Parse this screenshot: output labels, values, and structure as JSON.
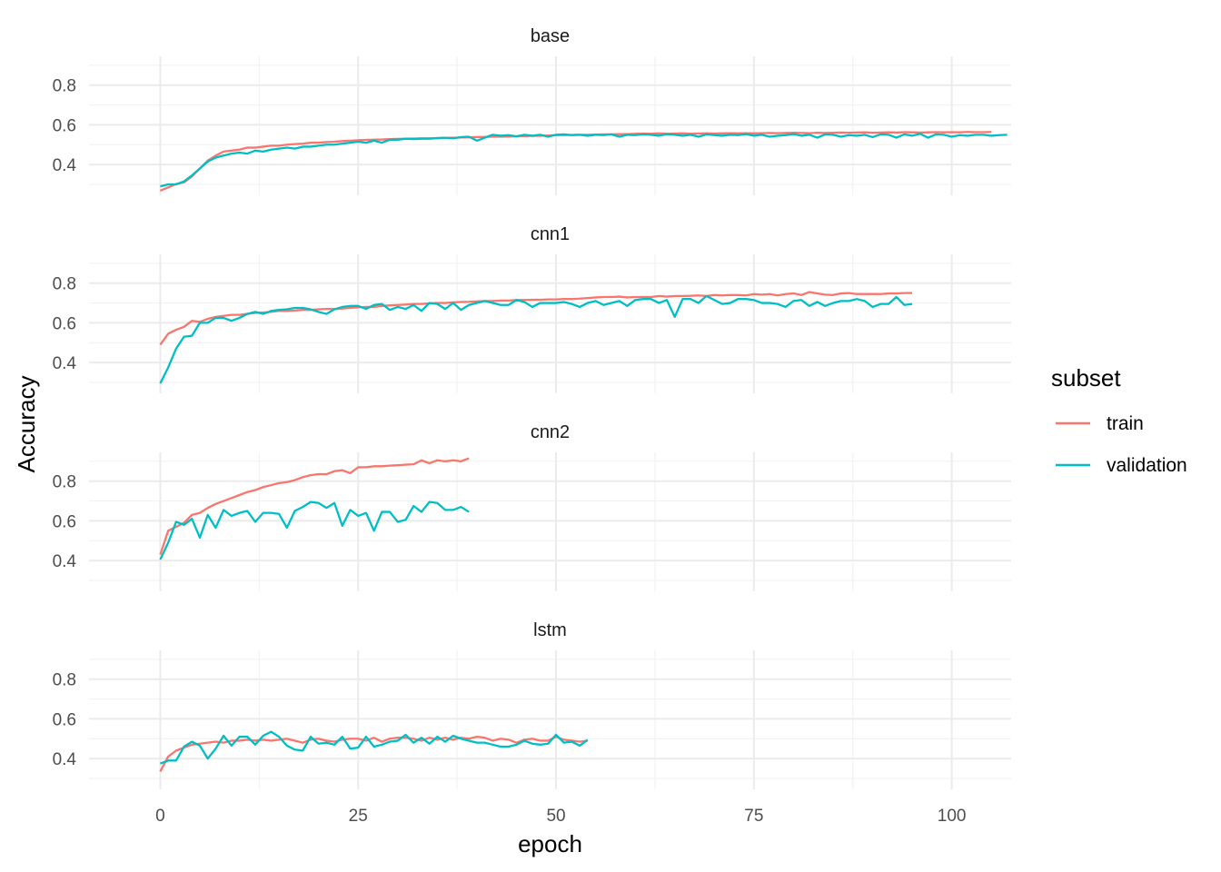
{
  "chart_data": {
    "type": "line",
    "xlabel": "epoch",
    "ylabel": "Accuracy",
    "xlim": [
      -9,
      107.5
    ],
    "ylim": [
      0.245,
      0.945
    ],
    "x_ticks": [
      0,
      25,
      50,
      75,
      100
    ],
    "y_ticks": [
      0.4,
      0.6,
      0.8
    ],
    "grid": true,
    "legend": {
      "title": "subset",
      "position": "right",
      "entries": [
        {
          "name": "train",
          "color": "#F8766D"
        },
        {
          "name": "validation",
          "color": "#00BFC4"
        }
      ]
    },
    "panels": [
      {
        "name": "base",
        "series": [
          {
            "name": "train",
            "color": "#F8766D",
            "values": [
              0.268,
              0.285,
              0.302,
              0.31,
              0.34,
              0.38,
              0.42,
              0.445,
              0.465,
              0.47,
              0.475,
              0.485,
              0.485,
              0.49,
              0.495,
              0.495,
              0.5,
              0.503,
              0.505,
              0.51,
              0.51,
              0.513,
              0.515,
              0.518,
              0.52,
              0.522,
              0.524,
              0.525,
              0.526,
              0.528,
              0.529,
              0.53,
              0.531,
              0.532,
              0.532,
              0.533,
              0.534,
              0.535,
              0.536,
              0.537,
              0.538,
              0.539,
              0.54,
              0.54,
              0.541,
              0.542,
              0.543,
              0.544,
              0.545,
              0.546,
              0.548,
              0.548,
              0.549,
              0.55,
              0.55,
              0.551,
              0.552,
              0.552,
              0.553,
              0.553,
              0.555,
              0.556,
              0.555,
              0.557,
              0.555,
              0.556,
              0.557,
              0.555,
              0.556,
              0.557,
              0.556,
              0.557,
              0.558,
              0.557,
              0.558,
              0.557,
              0.558,
              0.559,
              0.558,
              0.559,
              0.56,
              0.559,
              0.558,
              0.56,
              0.559,
              0.56,
              0.561,
              0.56,
              0.561,
              0.562,
              0.56,
              0.561,
              0.562,
              0.561,
              0.563,
              0.562,
              0.561,
              0.562,
              0.563,
              0.562,
              0.563,
              0.562,
              0.564,
              0.563,
              0.563,
              0.564
            ]
          },
          {
            "name": "validation",
            "color": "#00BFC4",
            "values": [
              0.29,
              0.3,
              0.3,
              0.315,
              0.345,
              0.38,
              0.415,
              0.435,
              0.445,
              0.455,
              0.46,
              0.455,
              0.47,
              0.465,
              0.475,
              0.48,
              0.485,
              0.48,
              0.49,
              0.49,
              0.495,
              0.5,
              0.5,
              0.505,
              0.51,
              0.515,
              0.51,
              0.52,
              0.51,
              0.525,
              0.525,
              0.53,
              0.528,
              0.53,
              0.53,
              0.533,
              0.535,
              0.532,
              0.538,
              0.54,
              0.52,
              0.535,
              0.55,
              0.545,
              0.548,
              0.542,
              0.55,
              0.545,
              0.55,
              0.54,
              0.55,
              0.552,
              0.548,
              0.55,
              0.545,
              0.55,
              0.548,
              0.552,
              0.54,
              0.55,
              0.548,
              0.552,
              0.55,
              0.545,
              0.553,
              0.55,
              0.545,
              0.55,
              0.54,
              0.552,
              0.548,
              0.545,
              0.55,
              0.548,
              0.553,
              0.545,
              0.55,
              0.54,
              0.545,
              0.548,
              0.553,
              0.545,
              0.55,
              0.535,
              0.552,
              0.55,
              0.54,
              0.548,
              0.545,
              0.55,
              0.538,
              0.552,
              0.55,
              0.535,
              0.552,
              0.545,
              0.555,
              0.535,
              0.552,
              0.55,
              0.54,
              0.548,
              0.545,
              0.55,
              0.55,
              0.545,
              0.548,
              0.55
            ]
          }
        ]
      },
      {
        "name": "cnn1",
        "series": [
          {
            "name": "train",
            "color": "#F8766D",
            "values": [
              0.49,
              0.545,
              0.565,
              0.58,
              0.61,
              0.605,
              0.62,
              0.63,
              0.635,
              0.64,
              0.64,
              0.645,
              0.65,
              0.652,
              0.655,
              0.66,
              0.66,
              0.662,
              0.665,
              0.665,
              0.668,
              0.67,
              0.67,
              0.672,
              0.675,
              0.678,
              0.68,
              0.68,
              0.685,
              0.688,
              0.69,
              0.692,
              0.695,
              0.695,
              0.698,
              0.7,
              0.7,
              0.703,
              0.705,
              0.706,
              0.708,
              0.71,
              0.71,
              0.712,
              0.712,
              0.715,
              0.715,
              0.716,
              0.716,
              0.718,
              0.718,
              0.72,
              0.72,
              0.722,
              0.725,
              0.728,
              0.73,
              0.73,
              0.732,
              0.728,
              0.73,
              0.73,
              0.73,
              0.735,
              0.732,
              0.735,
              0.735,
              0.736,
              0.738,
              0.735,
              0.74,
              0.738,
              0.74,
              0.74,
              0.738,
              0.745,
              0.742,
              0.745,
              0.738,
              0.745,
              0.748,
              0.74,
              0.755,
              0.748,
              0.742,
              0.74,
              0.748,
              0.75,
              0.745,
              0.745,
              0.745,
              0.745,
              0.748,
              0.748,
              0.75,
              0.75
            ]
          },
          {
            "name": "validation",
            "color": "#00BFC4",
            "values": [
              0.295,
              0.375,
              0.47,
              0.53,
              0.535,
              0.6,
              0.6,
              0.625,
              0.625,
              0.61,
              0.625,
              0.645,
              0.655,
              0.645,
              0.66,
              0.665,
              0.668,
              0.675,
              0.675,
              0.668,
              0.655,
              0.645,
              0.668,
              0.68,
              0.685,
              0.685,
              0.67,
              0.69,
              0.695,
              0.665,
              0.68,
              0.67,
              0.69,
              0.66,
              0.7,
              0.695,
              0.67,
              0.7,
              0.665,
              0.69,
              0.7,
              0.71,
              0.7,
              0.69,
              0.69,
              0.715,
              0.705,
              0.68,
              0.7,
              0.7,
              0.7,
              0.705,
              0.695,
              0.68,
              0.7,
              0.71,
              0.69,
              0.7,
              0.71,
              0.685,
              0.715,
              0.72,
              0.72,
              0.7,
              0.715,
              0.63,
              0.72,
              0.72,
              0.7,
              0.735,
              0.715,
              0.695,
              0.7,
              0.72,
              0.72,
              0.715,
              0.7,
              0.7,
              0.695,
              0.68,
              0.71,
              0.715,
              0.685,
              0.705,
              0.685,
              0.7,
              0.71,
              0.71,
              0.72,
              0.71,
              0.68,
              0.695,
              0.695,
              0.73,
              0.69,
              0.695
            ]
          }
        ]
      },
      {
        "name": "cnn2",
        "series": [
          {
            "name": "train",
            "color": "#F8766D",
            "values": [
              0.43,
              0.55,
              0.57,
              0.59,
              0.63,
              0.64,
              0.665,
              0.685,
              0.7,
              0.715,
              0.73,
              0.745,
              0.755,
              0.77,
              0.78,
              0.79,
              0.795,
              0.805,
              0.82,
              0.83,
              0.835,
              0.835,
              0.85,
              0.855,
              0.84,
              0.87,
              0.87,
              0.875,
              0.875,
              0.878,
              0.88,
              0.883,
              0.885,
              0.905,
              0.89,
              0.905,
              0.9,
              0.905,
              0.9,
              0.915
            ]
          },
          {
            "name": "validation",
            "color": "#00BFC4",
            "values": [
              0.405,
              0.49,
              0.595,
              0.58,
              0.61,
              0.515,
              0.63,
              0.565,
              0.655,
              0.625,
              0.64,
              0.65,
              0.595,
              0.64,
              0.64,
              0.635,
              0.565,
              0.65,
              0.67,
              0.695,
              0.69,
              0.665,
              0.69,
              0.575,
              0.655,
              0.625,
              0.64,
              0.55,
              0.645,
              0.645,
              0.595,
              0.605,
              0.675,
              0.645,
              0.695,
              0.69,
              0.655,
              0.655,
              0.67,
              0.645
            ]
          }
        ]
      },
      {
        "name": "lstm",
        "series": [
          {
            "name": "train",
            "color": "#F8766D",
            "values": [
              0.335,
              0.41,
              0.44,
              0.455,
              0.47,
              0.475,
              0.48,
              0.485,
              0.48,
              0.49,
              0.49,
              0.495,
              0.49,
              0.495,
              0.49,
              0.495,
              0.5,
              0.49,
              0.48,
              0.495,
              0.5,
              0.49,
              0.485,
              0.495,
              0.5,
              0.5,
              0.49,
              0.505,
              0.485,
              0.5,
              0.505,
              0.505,
              0.5,
              0.49,
              0.505,
              0.495,
              0.505,
              0.495,
              0.505,
              0.5,
              0.51,
              0.505,
              0.49,
              0.5,
              0.495,
              0.48,
              0.495,
              0.5,
              0.49,
              0.49,
              0.51,
              0.495,
              0.49,
              0.485,
              0.49
            ]
          },
          {
            "name": "validation",
            "color": "#00BFC4",
            "values": [
              0.375,
              0.39,
              0.39,
              0.46,
              0.485,
              0.465,
              0.4,
              0.45,
              0.515,
              0.465,
              0.51,
              0.51,
              0.47,
              0.515,
              0.535,
              0.51,
              0.465,
              0.445,
              0.44,
              0.51,
              0.475,
              0.48,
              0.47,
              0.51,
              0.45,
              0.455,
              0.51,
              0.46,
              0.47,
              0.485,
              0.49,
              0.52,
              0.48,
              0.505,
              0.475,
              0.51,
              0.485,
              0.515,
              0.5,
              0.49,
              0.48,
              0.48,
              0.47,
              0.46,
              0.46,
              0.47,
              0.49,
              0.475,
              0.47,
              0.475,
              0.52,
              0.48,
              0.485,
              0.465,
              0.495
            ]
          }
        ]
      }
    ]
  }
}
